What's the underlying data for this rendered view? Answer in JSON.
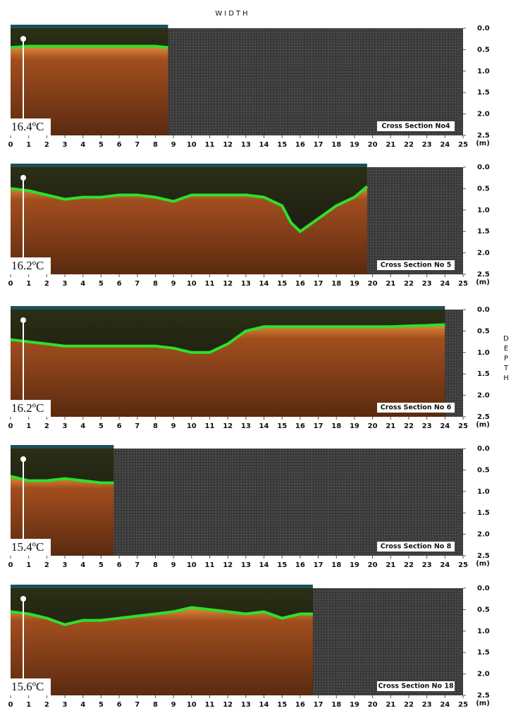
{
  "x_axis_title": "WIDTH",
  "y_axis_title": "DEPTH",
  "chart_data": [
    {
      "type": "line",
      "label": "Cross Section No4",
      "temperature": "16.4ºC",
      "x_unit": "(m)",
      "x": [
        0,
        1,
        2,
        3,
        4,
        5,
        6,
        7,
        8,
        8.7
      ],
      "values": [
        0.45,
        0.42,
        0.42,
        0.42,
        0.42,
        0.42,
        0.42,
        0.42,
        0.42,
        0.45
      ],
      "color": "#2ee02a",
      "xlim": [
        0,
        25
      ],
      "xticks": [
        0,
        1,
        2,
        3,
        4,
        5,
        6,
        7,
        8,
        9,
        10,
        11,
        12,
        13,
        14,
        15,
        16,
        17,
        18,
        19,
        20,
        21,
        22,
        23,
        24,
        25
      ],
      "ylim": [
        0,
        2.5
      ],
      "yticks": [
        {
          "value": 0,
          "label": "0.0"
        },
        0.5,
        {
          "value": 1,
          "label": "1.0"
        },
        1.5,
        {
          "value": 2,
          "label": "2.0"
        },
        2.5
      ]
    },
    {
      "type": "line",
      "label": "Cross Section No 5",
      "temperature": "16.2ºC",
      "x_unit": "(m)",
      "x": [
        0,
        1,
        2,
        3,
        4,
        5,
        6,
        7,
        8,
        9,
        10,
        11,
        12,
        13,
        14,
        15,
        15.5,
        16,
        17,
        18,
        19,
        19.7
      ],
      "values": [
        0.5,
        0.55,
        0.65,
        0.75,
        0.7,
        0.7,
        0.65,
        0.65,
        0.7,
        0.8,
        0.65,
        0.65,
        0.65,
        0.65,
        0.7,
        0.9,
        1.3,
        1.5,
        1.2,
        0.9,
        0.7,
        0.45
      ],
      "color": "#2ee02a",
      "xlim": [
        0,
        25
      ],
      "xticks": [
        0,
        1,
        2,
        3,
        4,
        5,
        6,
        7,
        8,
        9,
        10,
        11,
        12,
        13,
        14,
        15,
        16,
        17,
        18,
        19,
        20,
        21,
        22,
        23,
        24,
        25
      ],
      "ylim": [
        0,
        2.5
      ],
      "yticks": [
        {
          "value": 0,
          "label": "0.0"
        },
        0.5,
        {
          "value": 1,
          "label": "1.0"
        },
        1.5,
        {
          "value": 2,
          "label": "2.0"
        },
        2.5
      ]
    },
    {
      "type": "line",
      "label": "Cross Section No 6",
      "temperature": "16.2ºC",
      "x_unit": "(m)",
      "x": [
        0,
        1,
        2,
        3,
        4,
        5,
        6,
        7,
        8,
        9,
        10,
        11,
        12,
        13,
        14,
        15,
        16,
        17,
        18,
        19,
        20,
        21,
        22,
        23,
        24
      ],
      "values": [
        0.7,
        0.75,
        0.8,
        0.85,
        0.85,
        0.85,
        0.85,
        0.85,
        0.85,
        0.9,
        1.0,
        1.0,
        0.8,
        0.5,
        0.4,
        0.4,
        0.4,
        0.4,
        0.4,
        0.4,
        0.4,
        0.4,
        0.38,
        0.37,
        0.35
      ],
      "color": "#2ee02a",
      "xlim": [
        0,
        25
      ],
      "xticks": [
        0,
        1,
        2,
        3,
        4,
        5,
        6,
        7,
        8,
        9,
        10,
        11,
        12,
        13,
        14,
        15,
        16,
        17,
        18,
        19,
        20,
        21,
        22,
        23,
        24,
        25
      ],
      "ylim": [
        0,
        2.5
      ],
      "yticks": [
        {
          "value": 0,
          "label": "0.0"
        },
        0.5,
        {
          "value": 1,
          "label": "1.0"
        },
        1.5,
        {
          "value": 2,
          "label": "2.0"
        },
        2.5
      ]
    },
    {
      "type": "line",
      "label": "Cross Section No 8",
      "temperature": "15.4ºC",
      "x_unit": "(m)",
      "x": [
        0,
        1,
        2,
        3,
        4,
        5,
        5.7
      ],
      "values": [
        0.65,
        0.75,
        0.75,
        0.7,
        0.75,
        0.8,
        0.8
      ],
      "color": "#2ee02a",
      "xlim": [
        0,
        25
      ],
      "xticks": [
        0,
        1,
        2,
        3,
        4,
        5,
        6,
        7,
        8,
        9,
        10,
        11,
        12,
        13,
        14,
        15,
        16,
        17,
        18,
        19,
        20,
        21,
        22,
        23,
        24,
        25
      ],
      "ylim": [
        0,
        2.5
      ],
      "yticks": [
        {
          "value": 0,
          "label": "0.0"
        },
        0.5,
        {
          "value": 1,
          "label": "1.0"
        },
        1.5,
        {
          "value": 2,
          "label": "2.0"
        },
        2.5
      ]
    },
    {
      "type": "line",
      "label": "Cross Section No 18",
      "temperature": "15.6ºC",
      "x_unit": "(m)",
      "x": [
        0,
        1,
        2,
        3,
        4,
        5,
        6,
        7,
        8,
        9,
        10,
        11,
        12,
        13,
        14,
        15,
        16,
        16.7
      ],
      "values": [
        0.55,
        0.6,
        0.7,
        0.85,
        0.75,
        0.75,
        0.7,
        0.65,
        0.6,
        0.55,
        0.45,
        0.5,
        0.55,
        0.6,
        0.55,
        0.7,
        0.6,
        0.6
      ],
      "color": "#2ee02a",
      "xlim": [
        0,
        25
      ],
      "xticks": [
        0,
        1,
        2,
        3,
        4,
        5,
        6,
        7,
        8,
        9,
        10,
        11,
        12,
        13,
        14,
        15,
        16,
        17,
        18,
        19,
        20,
        21,
        22,
        23,
        24,
        25
      ],
      "ylim": [
        0,
        2.5
      ],
      "yticks": [
        {
          "value": 0,
          "label": "0.0"
        },
        0.5,
        {
          "value": 1,
          "label": "1.0"
        },
        1.5,
        {
          "value": 2,
          "label": "2.0"
        },
        2.5
      ]
    }
  ]
}
